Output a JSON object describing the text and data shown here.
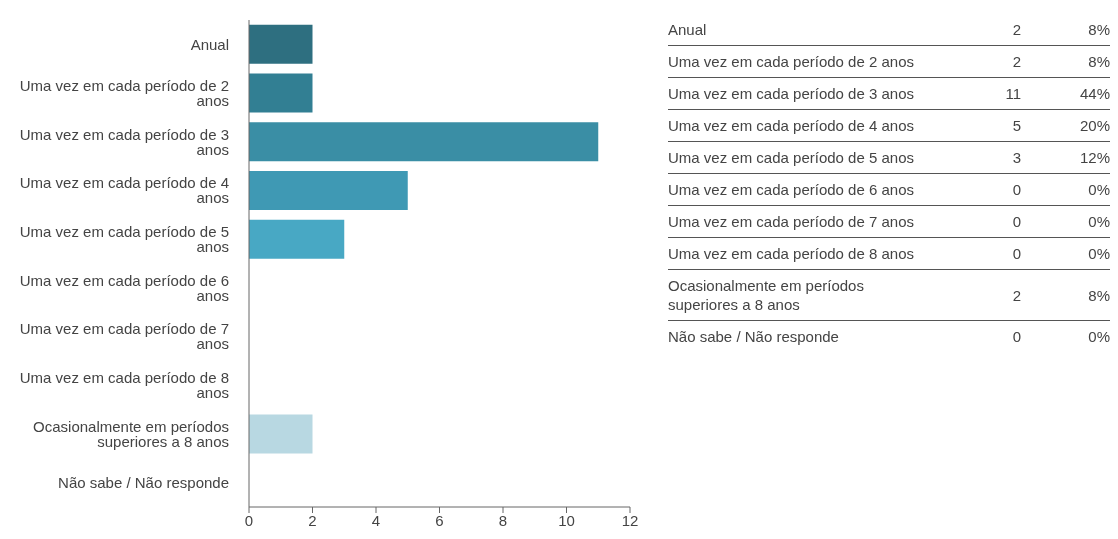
{
  "chart_data": [
    {
      "type": "bar",
      "orientation": "horizontal",
      "categories": [
        "Anual",
        "Uma vez em cada período de 2 anos",
        "Uma vez em cada período de 3 anos",
        "Uma vez em cada período de 4 anos",
        "Uma vez em cada período de 5 anos",
        "Uma vez em cada período de 6 anos",
        "Uma vez em cada período de 7 anos",
        "Uma vez em cada período de 8 anos",
        "Ocasionalmente em períodos superiores a 8 anos",
        "Não sabe / Não responde"
      ],
      "values": [
        2,
        2,
        11,
        5,
        3,
        0,
        0,
        0,
        2,
        0
      ],
      "colors": [
        "#2e6f80",
        "#327f93",
        "#3a8ea5",
        "#3f99b4",
        "#48a8c4",
        "#6fbcd0",
        "#8cc8d8",
        "#a4d2de",
        "#b8d8e2",
        "#c8e0e8"
      ],
      "xlim": [
        0,
        12
      ],
      "xticks": [
        0,
        2,
        4,
        6,
        8,
        10,
        12
      ],
      "grid": false,
      "legend": false
    },
    {
      "type": "other",
      "data_labels": true,
      "categories": [
        "Anual",
        "Uma vez em cada período de 2 anos",
        "Uma vez em cada período de 3 anos",
        "Uma vez em cada período de 4 anos",
        "Uma vez em cada período de 5 anos",
        "Uma vez em cada período de 6 anos",
        "Uma vez em cada período de 7 anos",
        "Uma vez em cada período de 8 anos",
        "Ocasionalmente em períodos superiores a 8 anos",
        "Não sabe / Não responde"
      ],
      "series": [
        {
          "values": [
            2,
            2,
            11,
            5,
            3,
            0,
            0,
            0,
            2,
            0
          ]
        },
        {
          "values": [
            8,
            8,
            44,
            20,
            12,
            0,
            0,
            0,
            8,
            0
          ],
          "value_labels": [
            "8%",
            "8%",
            "44%",
            "20%",
            "12%",
            "0%",
            "0%",
            "0%",
            "8%",
            "0%"
          ]
        }
      ]
    }
  ]
}
